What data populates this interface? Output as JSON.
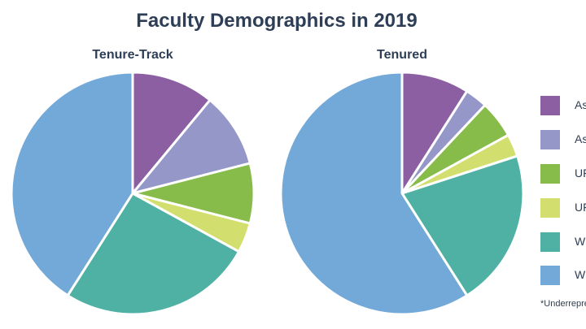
{
  "title": "Faculty Demographics in 2019",
  "legend": [
    {
      "label": "As",
      "color": "#8c5fa3"
    },
    {
      "label": "As",
      "color": "#9597c9"
    },
    {
      "label": "UF",
      "color": "#87bc4b"
    },
    {
      "label": "UF",
      "color": "#d2df6e"
    },
    {
      "label": "W",
      "color": "#4fb1a4"
    },
    {
      "label": "W",
      "color": "#72a9d8"
    }
  ],
  "footnote": "*Underrepre",
  "chart_data": [
    {
      "type": "pie",
      "title": "Tenure-Track",
      "values": [
        11,
        10,
        8,
        4,
        26,
        41
      ],
      "colors": [
        "#8c5fa3",
        "#9597c9",
        "#87bc4b",
        "#d2df6e",
        "#4fb1a4",
        "#72a9d8"
      ]
    },
    {
      "type": "pie",
      "title": "Tenured",
      "values": [
        9,
        3,
        5,
        3,
        21,
        59
      ],
      "colors": [
        "#8c5fa3",
        "#9597c9",
        "#87bc4b",
        "#d2df6e",
        "#4fb1a4",
        "#72a9d8"
      ]
    }
  ]
}
